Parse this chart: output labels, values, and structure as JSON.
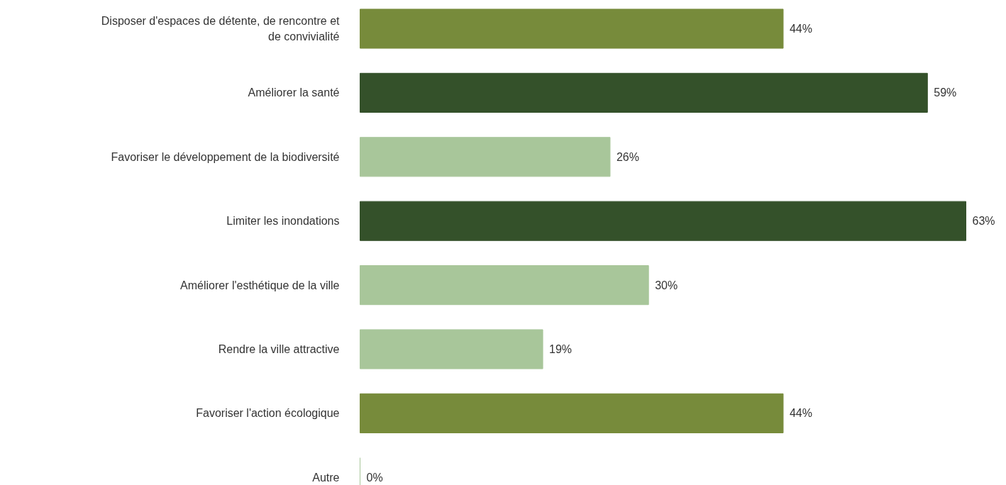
{
  "chart_data": {
    "type": "bar",
    "orientation": "horizontal",
    "categories": [
      "Disposer d'espaces de détente, de rencontre et de convivialité",
      "Améliorer la santé",
      "Favoriser le développement de la biodiversité",
      "Limiter les inondations",
      "Améliorer l'esthétique de la ville",
      "Rendre la ville attractive",
      "Favoriser l'action écologique",
      "Autre"
    ],
    "values": [
      44,
      59,
      26,
      63,
      30,
      19,
      44,
      0
    ],
    "value_labels": [
      "44%",
      "59%",
      "26%",
      "63%",
      "30%",
      "19%",
      "44%",
      "0%"
    ],
    "colors": [
      "#778b3b",
      "#34512a",
      "#a8c69a",
      "#34512a",
      "#a8c69a",
      "#a8c69a",
      "#778b3b",
      "#a8c69a"
    ]
  }
}
